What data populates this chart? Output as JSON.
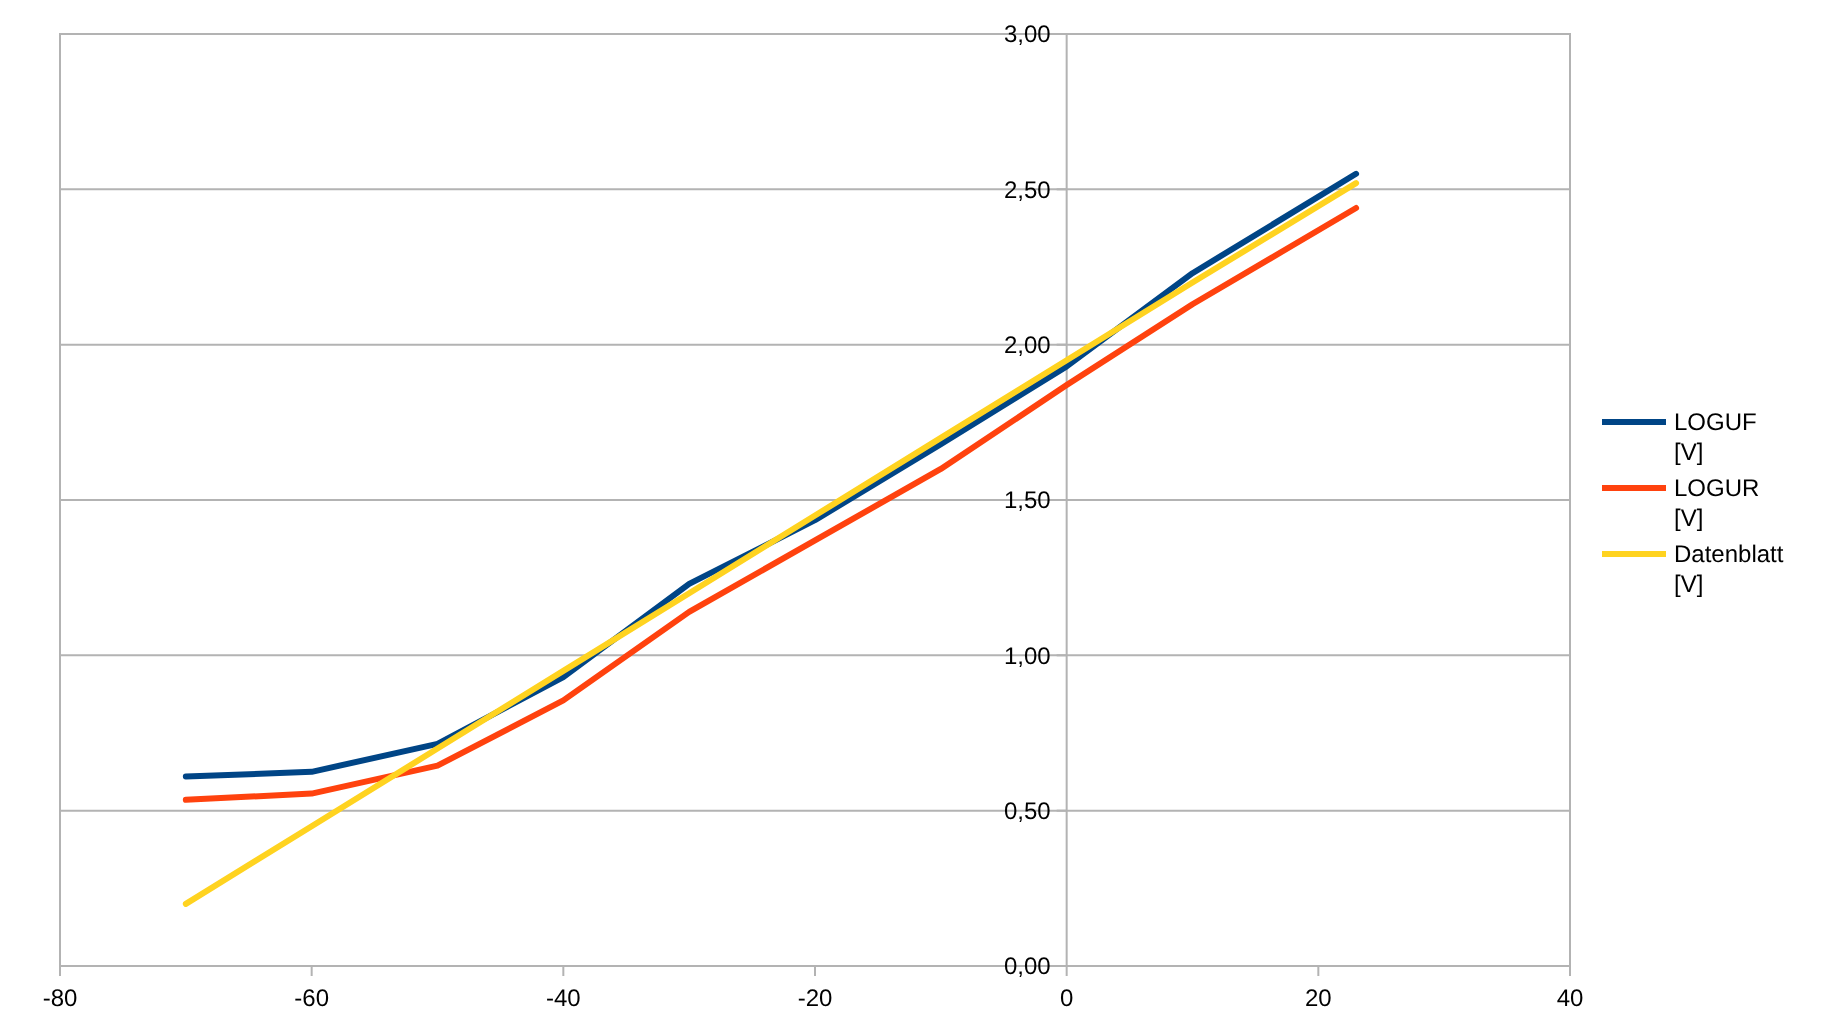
{
  "chart_data": {
    "type": "line",
    "x": [
      -70,
      -60,
      -50,
      -40,
      -30,
      -20,
      -10,
      0,
      10,
      23
    ],
    "series": [
      {
        "name": "LOGUF [V]",
        "color": "#004586",
        "values": [
          0.61,
          0.625,
          0.715,
          0.93,
          1.23,
          1.435,
          1.68,
          1.93,
          2.23,
          2.55
        ]
      },
      {
        "name": "LOGUR [V]",
        "color": "#ff420e",
        "values": [
          0.535,
          0.555,
          0.645,
          0.855,
          1.14,
          1.37,
          1.6,
          1.87,
          2.13,
          2.44
        ]
      },
      {
        "name": "Datenblatt [V]",
        "color": "#ffd320",
        "values": [
          0.2,
          0.45,
          0.7,
          0.95,
          1.2,
          1.45,
          1.7,
          1.95,
          2.2,
          2.52
        ]
      }
    ],
    "xlim": [
      -80,
      40
    ],
    "xticks": [
      -80,
      -60,
      -40,
      -20,
      0,
      20,
      40
    ],
    "ylim": [
      0,
      3
    ],
    "yticks": [
      {
        "value": 0,
        "label": "0,00"
      },
      {
        "value": 0.5,
        "label": "0,50"
      },
      {
        "value": 1,
        "label": "1,00"
      },
      {
        "value": 1.5,
        "label": "1,50"
      },
      {
        "value": 2,
        "label": "2,00"
      },
      {
        "value": 2.5,
        "label": "2,50"
      },
      {
        "value": 3,
        "label": "3,00"
      }
    ],
    "grid": "y",
    "legend": "right",
    "marker": "none",
    "line_style": "solid"
  }
}
